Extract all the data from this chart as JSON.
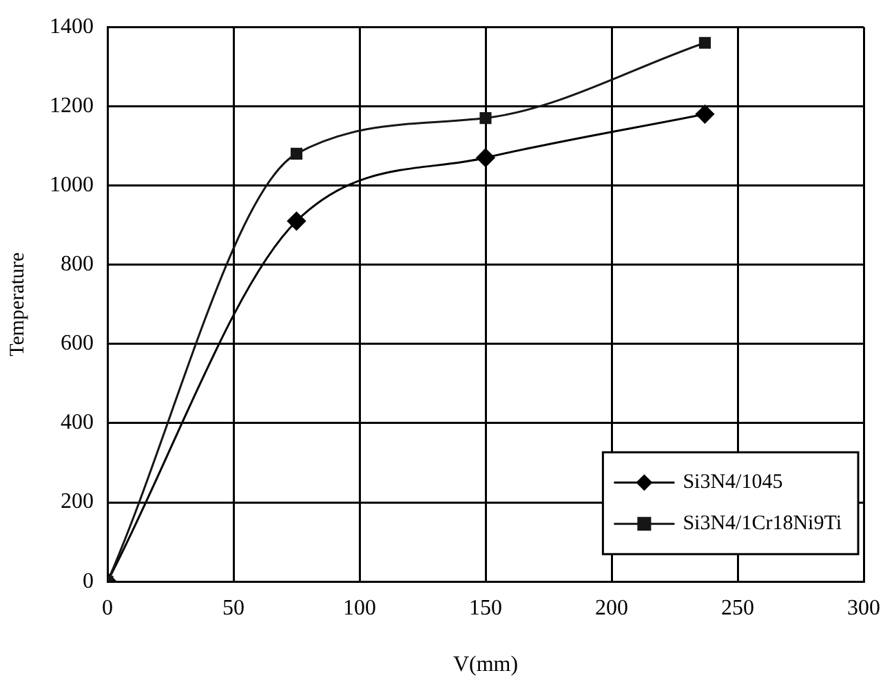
{
  "chart_data": {
    "type": "line",
    "xlabel": "V(mm)",
    "ylabel": "Temperature",
    "xlim": [
      0,
      300
    ],
    "xticks": [
      0,
      50,
      100,
      150,
      200,
      250,
      300
    ],
    "ylim": [
      0,
      1400
    ],
    "yticks": [
      0,
      200,
      400,
      600,
      800,
      1000,
      1200,
      1400
    ],
    "grid": true,
    "legend": "bottom right",
    "series": [
      {
        "name": "Si3N4/1045",
        "color": "#000000",
        "marker": "diamond",
        "x": [
          0,
          75,
          150,
          237
        ],
        "values": [
          0,
          910,
          1070,
          1180
        ]
      },
      {
        "name": "Si3N4/1Cr18Ni9Ti",
        "color": "#161616",
        "marker": "square",
        "x": [
          0,
          75,
          150,
          237
        ],
        "values": [
          0,
          1080,
          1170,
          1360
        ]
      }
    ]
  }
}
